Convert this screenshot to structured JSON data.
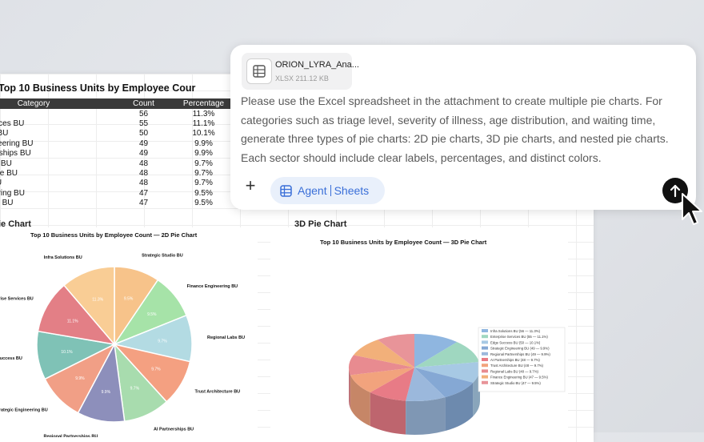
{
  "table": {
    "title": "Top 10 Business Units by Employee Cour",
    "headers": [
      "Category",
      "Count",
      "Percentage"
    ],
    "rows": [
      {
        "category": "Solutions BU",
        "count": "56",
        "pct": "11.3%"
      },
      {
        "category": "erprise Services BU",
        "count": "55",
        "pct": "11.1%"
      },
      {
        "category": "ge Success BU",
        "count": "50",
        "pct": "10.1%"
      },
      {
        "category": "ategic Engineering BU",
        "count": "49",
        "pct": "9.9%"
      },
      {
        "category": "ional Partnerships BU",
        "count": "49",
        "pct": "9.9%"
      },
      {
        "category": "Partnerships BU",
        "count": "48",
        "pct": "9.7%"
      },
      {
        "category": "st Architecture BU",
        "count": "48",
        "pct": "9.7%"
      },
      {
        "category": "onal Labs BU",
        "count": "48",
        "pct": "9.7%"
      },
      {
        "category": "nce Engineering BU",
        "count": "47",
        "pct": "9.5%"
      },
      {
        "category": "ategic Studio BU",
        "count": "47",
        "pct": "9.5%"
      }
    ]
  },
  "section_2d_label": "ie Chart",
  "section_3d_label": "3D Pie Chart",
  "chart_data": [
    {
      "type": "pie",
      "title": "Top 10 Business Units by Employee Count — 2D Pie Chart",
      "categories": [
        "Strategic Studio BU",
        "Finance Engineering BU",
        "Regional Labs BU",
        "Trust Architecture BU",
        "AI Partnerships BU",
        "Regional Partnerships BU",
        "Strategic Engineering BU",
        "Edge Success BU",
        "Enterprise Services BU",
        "Infra Solutions BU"
      ],
      "visible_labels": [
        "Strategic Studio BU",
        "Finance Engineering BU",
        "Regional Labs BU",
        "Trust Architecture BU",
        "AI Partnerships BU",
        "Regional Partnerships BU",
        "rategic Engineering BU",
        "Success BU",
        "erprise Services BU",
        "Infra Solutions BU"
      ],
      "values": [
        9.5,
        9.5,
        9.7,
        9.7,
        9.7,
        9.9,
        9.9,
        10.1,
        11.1,
        11.3
      ],
      "value_labels": [
        "9.5%",
        "9.5%",
        "9.7%",
        "9.7%",
        "9.7%",
        "9.9%",
        "9.9%",
        "10.1%",
        "11.1%",
        "11.3%"
      ],
      "colors": [
        "#f7c38a",
        "#a6e3a8",
        "#b3dbe3",
        "#f4a081",
        "#a8dcae",
        "#8d8fbb",
        "#f19f86",
        "#7fc2b6",
        "#e37f86",
        "#f9cd95"
      ]
    },
    {
      "type": "pie",
      "title": "Top 10 Business Units by Employee Count — 3D Pie Chart",
      "legend_position": "upper-right",
      "legend": [
        "Infra Solutions BU (56 — 11.3%)",
        "Enterprise Services BU (55 — 11.1%)",
        "Edge Success BU (50 — 10.1%)",
        "Strategic Engineering BU (49 — 9.9%)",
        "Regional Partnerships BU (49 — 9.9%)",
        "AI Partnerships BU (48 — 9.7%)",
        "Trust Architecture BU (48 — 9.7%)",
        "Regional Labs BU (48 — 9.7%)",
        "Finance Engineering BU (47 — 9.5%)",
        "Strategic Studio BU (47 — 9.5%)"
      ],
      "values": [
        56,
        55,
        50,
        49,
        49,
        48,
        48,
        48,
        47,
        47
      ],
      "colors": [
        "#8fb6e0",
        "#9fd7c0",
        "#a7c9e4",
        "#85a8d4",
        "#9bb8dc",
        "#e87b86",
        "#f2a37d",
        "#e88b90",
        "#f2b07a",
        "#e89499"
      ]
    }
  ],
  "chat": {
    "file_name": "ORION_LYRA_Ana...",
    "file_meta": "XLSX 211.12 KB",
    "prompt": "Please use the Excel spreadsheet in the attachment to create multiple pie charts. For categories such as triage level, severity of illness, age distribution, and waiting time, generate three types of pie charts: 2D pie charts, 3D pie charts, and nested pie charts. Each sector should include clear labels, percentages, and distinct colors.",
    "plus": "+",
    "agent_label": "Agent",
    "sheets_label": "Sheets"
  },
  "icons": {
    "file": "spreadsheet-file-icon",
    "agent": "table-grid-icon",
    "send": "arrow-up-icon",
    "cursor": "mouse-pointer-icon"
  }
}
